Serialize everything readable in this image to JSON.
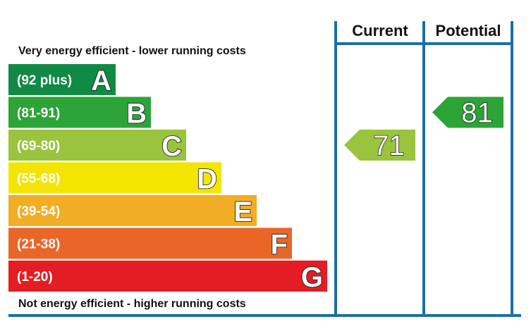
{
  "chart_data": {
    "type": "bar",
    "top_caption": "Very energy efficient - lower running costs",
    "bottom_caption": "Not energy efficient - higher running costs",
    "bands": [
      {
        "range": "(92 plus)",
        "letter": "A",
        "color": "#108a45"
      },
      {
        "range": "(81-91)",
        "letter": "B",
        "color": "#2ca437"
      },
      {
        "range": "(69-80)",
        "letter": "C",
        "color": "#9ac43d"
      },
      {
        "range": "(55-68)",
        "letter": "D",
        "color": "#f4e500"
      },
      {
        "range": "(39-54)",
        "letter": "E",
        "color": "#f1ad24"
      },
      {
        "range": "(21-38)",
        "letter": "F",
        "color": "#ea6628"
      },
      {
        "range": "(1-20)",
        "letter": "G",
        "color": "#e31d23"
      }
    ],
    "columns": [
      {
        "label": "Current",
        "value": 71,
        "band": "C",
        "color": "#9ac43d"
      },
      {
        "label": "Potential",
        "value": 81,
        "band": "B",
        "color": "#2ca437"
      }
    ],
    "frame_color": "#1c6fa0"
  }
}
